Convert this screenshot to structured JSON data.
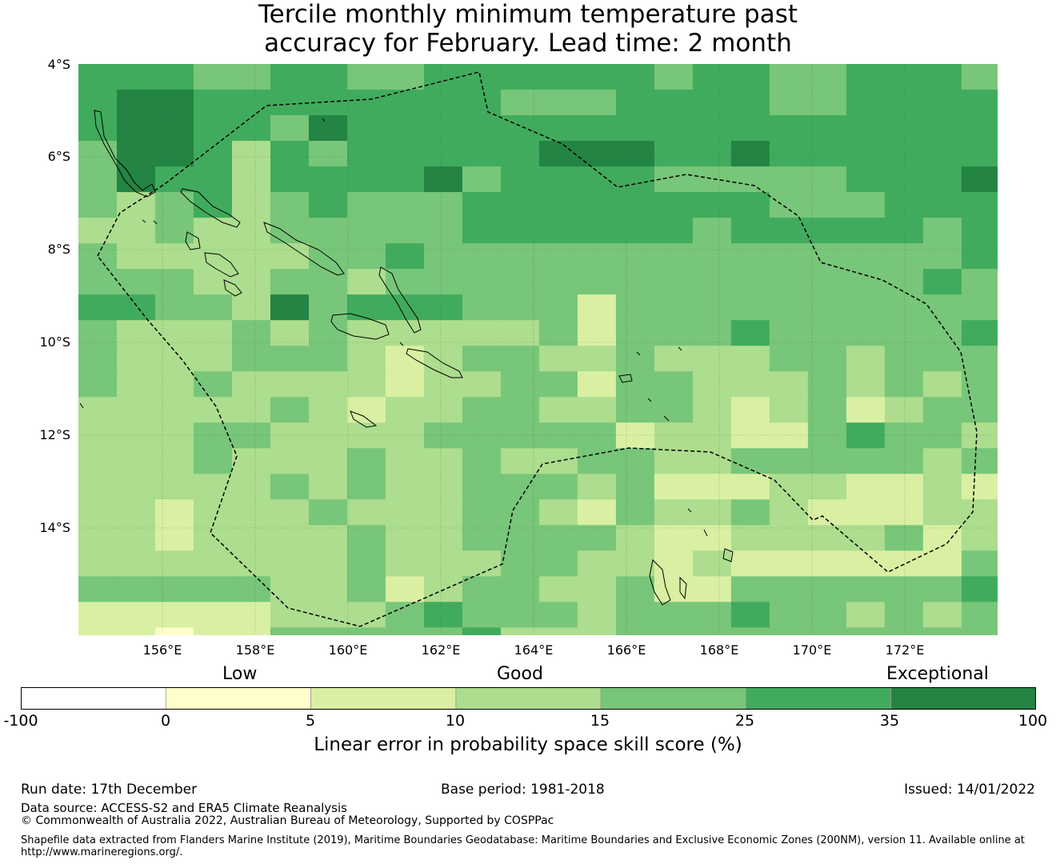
{
  "title": {
    "line1": "Tercile monthly minimum temperature past",
    "line2": "accuracy for February. Lead time: 2 month"
  },
  "map": {
    "lat_labels": [
      "4°S",
      "6°S",
      "8°S",
      "10°S",
      "12°S",
      "14°S"
    ],
    "lon_labels": [
      "156°E",
      "158°E",
      "160°E",
      "162°E",
      "164°E",
      "166°E",
      "168°E",
      "170°E",
      "172°E"
    ],
    "extent": {
      "lon_min": 154.2,
      "lon_max": 174.0,
      "lat_min": -16.3,
      "lat_max": -4.0
    },
    "grid_rows": [
      "444334433444444344334443",
      "455444444443334444334444",
      "455443544444444444444444",
      "355424344444555445444444",
      "354424444534444333334445",
      "323423433344444444333444",
      "223223333344444434444434",
      "322222334333333333333334",
      "333223323333333333333343",
      "443325344433313333333333",
      "322232322222313334333334",
      "322233321233223222332333",
      "322322221223313322232323",
      "222223212233223321231233",
      "222332222333331221134332",
      "222322232232233223333323",
      "222223232233323111221121",
      "221222322233213223211122",
      "221222232233332112222312",
      "222222232223322121111113",
      "333332231233223113333334",
      "111112223433323334332323",
      "1101133333422233333333333",
      "2222212311233333333333333"
    ],
    "colors": [
      "#ffffcc",
      "#d9f0a3",
      "#addd8e",
      "#78c679",
      "#41ab5d",
      "#238443"
    ]
  },
  "legend": {
    "categories": [
      "Low",
      "Good",
      "Exceptional"
    ],
    "ticks": [
      "-100",
      "0",
      "5",
      "10",
      "15",
      "25",
      "35",
      "100"
    ],
    "colors": [
      "#ffffff",
      "#ffffcc",
      "#d9f0a3",
      "#addd8e",
      "#78c679",
      "#41ab5d",
      "#238443"
    ],
    "axis_label": "Linear error in probability space skill score (%)"
  },
  "footer": {
    "run_date": "Run date: 17th December",
    "base_period": "Base period: 1981-2018",
    "issued": "Issued: 14/01/2022",
    "data_source": "Data source: ACCESS-S2 and ERA5 Climate Reanalysis",
    "copyright": "© Commonwealth of Australia 2022, Australian Bureau of Meteorology, Supported by COSPPac",
    "shapefile_line1": "Shapefile data extracted from Flanders Marine Institute (2019), Maritime Boundaries Geodatabase: Maritime Boundaries and Exclusive Economic Zones (200NM), version 11. Available online at",
    "shapefile_line2": "http://www.marineregions.org/."
  }
}
